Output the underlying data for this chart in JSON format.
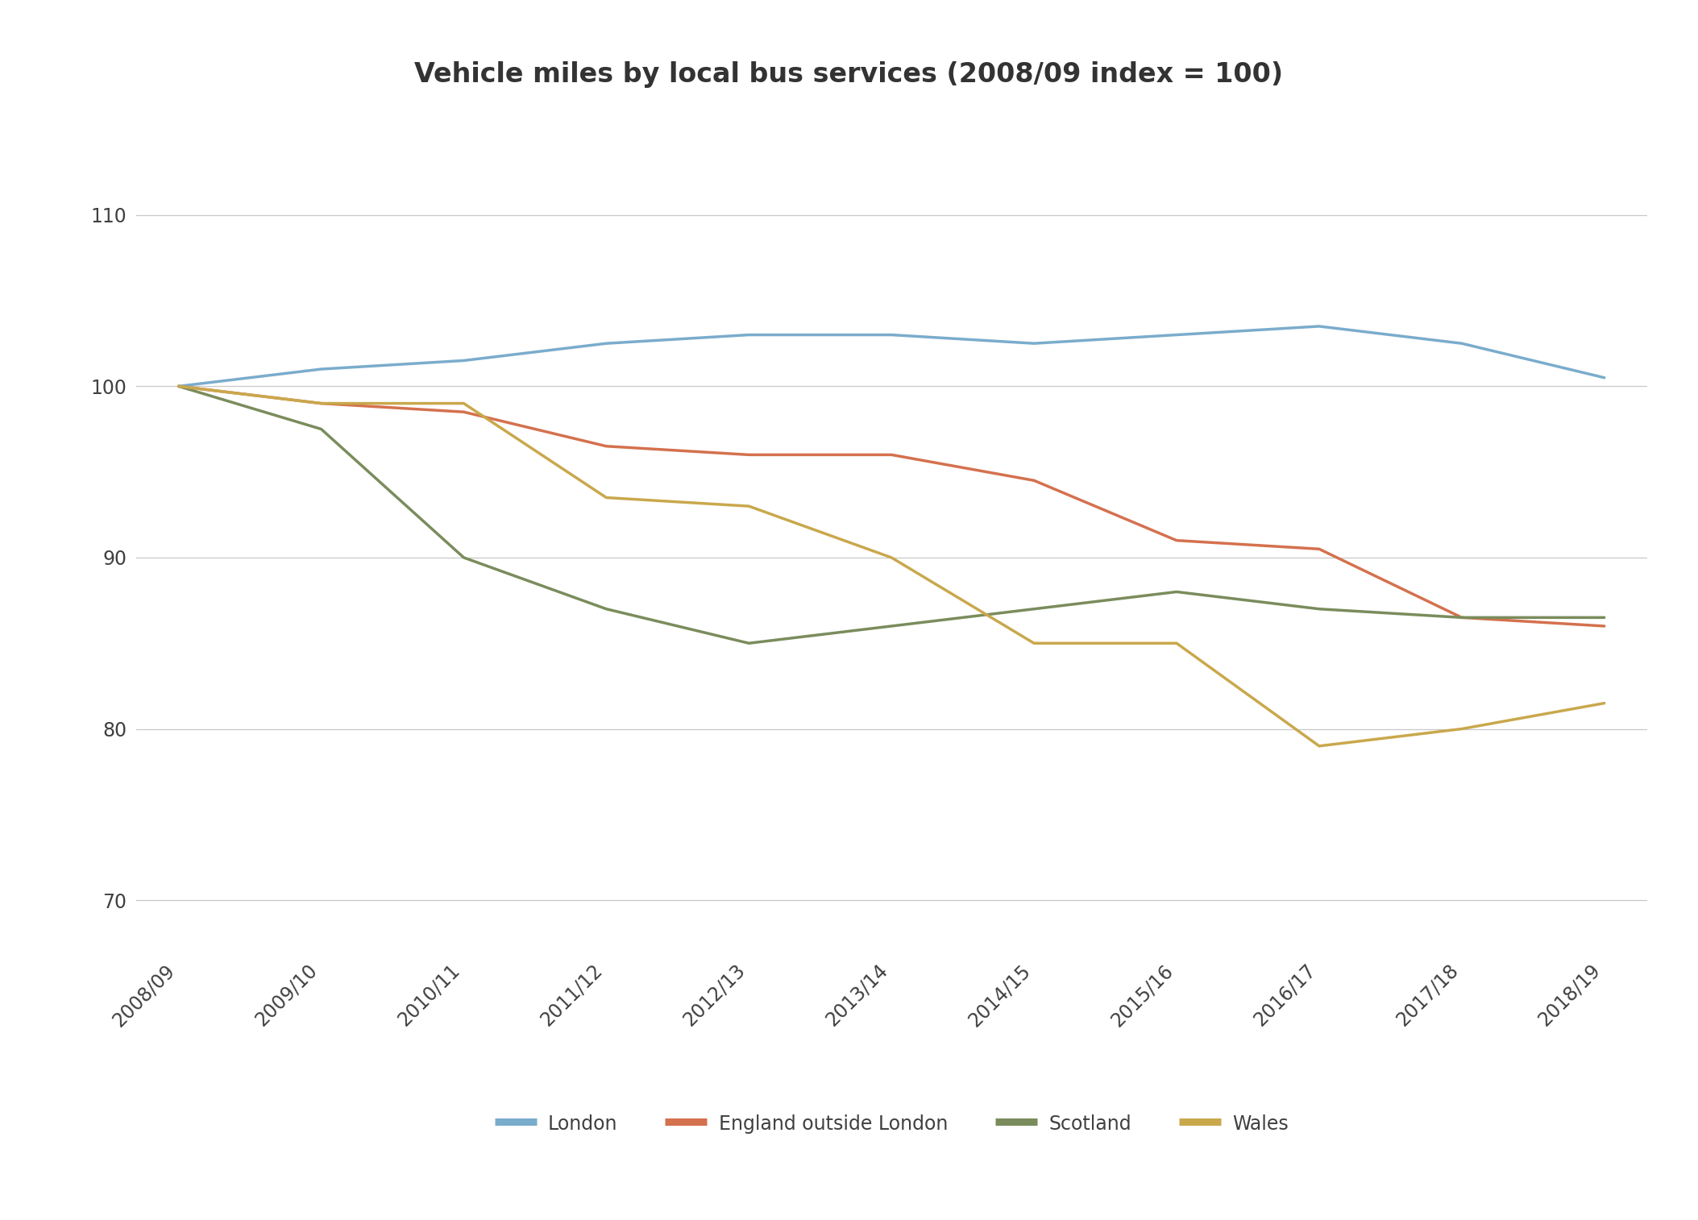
{
  "title": "Vehicle miles by local bus services (2008/09 index = 100)",
  "x_labels": [
    "2008/09",
    "2009/10",
    "2010/11",
    "2011/12",
    "2012/13",
    "2013/14",
    "2014/15",
    "2015/16",
    "2016/17",
    "2017/18",
    "2018/19"
  ],
  "series": {
    "London": {
      "values": [
        100,
        101,
        101.5,
        102.5,
        103,
        103,
        102.5,
        103,
        103.5,
        102.5,
        100.5
      ],
      "color": "#7aaccc"
    },
    "England outside London": {
      "values": [
        100,
        99,
        98.5,
        96.5,
        96,
        96,
        94.5,
        91,
        90.5,
        86.5,
        86
      ],
      "color": "#d4714e"
    },
    "Scotland": {
      "values": [
        100,
        97.5,
        90,
        87,
        85,
        86,
        87,
        88,
        87,
        86.5,
        86.5
      ],
      "color": "#7a8c5c"
    },
    "Wales": {
      "values": [
        100,
        99,
        99,
        93.5,
        93,
        90,
        85,
        85,
        79,
        80,
        81.5
      ],
      "color": "#c9a84c"
    }
  },
  "ylim": [
    67,
    114
  ],
  "yticks": [
    70,
    80,
    90,
    100,
    110
  ],
  "legend_labels": [
    "London",
    "England outside London",
    "Scotland",
    "Wales"
  ],
  "background_color": "#ffffff",
  "grid_color": "#c8c8c8",
  "title_fontsize": 24,
  "tick_fontsize": 17,
  "legend_fontsize": 17,
  "line_width": 2.5
}
